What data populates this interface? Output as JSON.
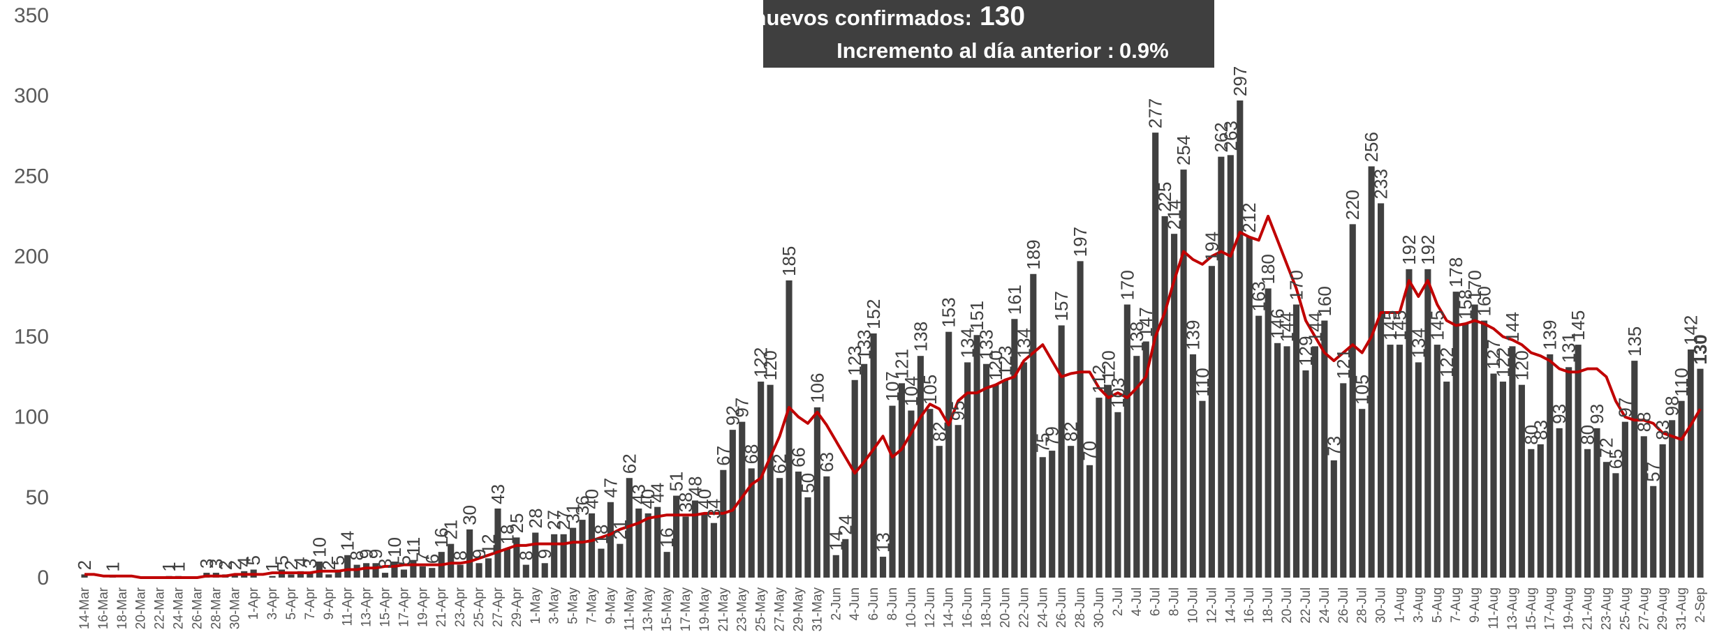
{
  "chart_data": {
    "type": "bar",
    "annotations": {
      "label1": "Casos nuevos confirmados:",
      "value1": "130",
      "label2": "Incremento al día anterior :",
      "value2": "0.9%"
    },
    "categories": [
      "14-Mar",
      null,
      "16-Mar",
      null,
      "18-Mar",
      null,
      "20-Mar",
      null,
      "22-Mar",
      null,
      "24-Mar",
      null,
      "26-Mar",
      null,
      "28-Mar",
      null,
      "30-Mar",
      null,
      "1-Apr",
      null,
      "3-Apr",
      null,
      "5-Apr",
      null,
      "7-Apr",
      null,
      "9-Apr",
      null,
      "11-Apr",
      null,
      "13-Apr",
      null,
      "15-Apr",
      null,
      "17-Apr",
      null,
      "19-Apr",
      null,
      "21-Apr",
      null,
      "23-Apr",
      null,
      "25-Apr",
      null,
      "27-Apr",
      null,
      "29-Apr",
      null,
      "1-May",
      null,
      "3-May",
      null,
      "5-May",
      null,
      "7-May",
      null,
      "9-May",
      null,
      "11-May",
      null,
      "13-May",
      null,
      "15-May",
      null,
      "17-May",
      null,
      "19-May",
      null,
      "21-May",
      null,
      "23-May",
      null,
      "25-May",
      null,
      "27-May",
      null,
      "29-May",
      null,
      "31-May",
      null,
      "2-Jun",
      null,
      "4-Jun",
      null,
      "6-Jun",
      null,
      "8-Jun",
      null,
      "10-Jun",
      null,
      "12-Jun",
      null,
      "14-Jun",
      null,
      "16-Jun",
      null,
      "18-Jun",
      null,
      "20-Jun",
      null,
      "22-Jun",
      null,
      "24-Jun",
      null,
      "26-Jun",
      null,
      "28-Jun",
      null,
      "30-Jun",
      null,
      "2-Jul",
      null,
      "4-Jul",
      null,
      "6-Jul",
      null,
      "8-Jul",
      null,
      "10-Jul",
      null,
      "12-Jul",
      null,
      "14-Jul",
      null,
      "16-Jul",
      null,
      "18-Jul",
      null,
      "20-Jul",
      null,
      "22-Jul",
      null,
      "24-Jul",
      null,
      "26-Jul",
      null,
      "28-Jul",
      null,
      "30-Jul",
      null,
      "1-Aug",
      null,
      "3-Aug",
      null,
      "5-Aug",
      null,
      "7-Aug",
      null,
      "9-Aug",
      null,
      "11-Aug",
      null,
      "13-Aug",
      null,
      "15-Aug",
      null,
      "17-Aug",
      null,
      "19-Aug",
      null,
      "21-Aug",
      null,
      "23-Aug",
      null,
      "25-Aug",
      null,
      "27-Aug",
      null,
      "29-Aug",
      null,
      "31-Aug",
      null,
      "2-Sep"
    ],
    "series": [
      {
        "type": "bar",
        "color": "#404040",
        "values": [
          2,
          0,
          0,
          1,
          0,
          0,
          0,
          0,
          0,
          1,
          1,
          0,
          0,
          3,
          3,
          2,
          2,
          4,
          5,
          0,
          1,
          5,
          2,
          4,
          3,
          10,
          2,
          5,
          14,
          8,
          9,
          9,
          3,
          10,
          5,
          11,
          7,
          6,
          16,
          21,
          8,
          30,
          9,
          12,
          43,
          18,
          25,
          8,
          28,
          9,
          27,
          27,
          31,
          36,
          40,
          18,
          47,
          21,
          62,
          43,
          40,
          44,
          16,
          51,
          38,
          48,
          40,
          34,
          67,
          92,
          97,
          68,
          122,
          120,
          62,
          185,
          66,
          50,
          106,
          63,
          14,
          24,
          123,
          133,
          152,
          13,
          107,
          121,
          104,
          138,
          105,
          82,
          153,
          95,
          134,
          151,
          133,
          120,
          123,
          161,
          134,
          189,
          75,
          79,
          157,
          82,
          197,
          70,
          112,
          120,
          103,
          170,
          138,
          147,
          277,
          225,
          214,
          254,
          139,
          110,
          194,
          262,
          263,
          297,
          212,
          163,
          180,
          146,
          144,
          170,
          129,
          144,
          160,
          73,
          121,
          220,
          105,
          256,
          233,
          145,
          145,
          192,
          134,
          192,
          145,
          122,
          178,
          158,
          170,
          160,
          127,
          122,
          144,
          120,
          80,
          83,
          139,
          93,
          131,
          145,
          80,
          93,
          72,
          65,
          97,
          135,
          88,
          57,
          83,
          98,
          110,
          142,
          130
        ]
      },
      {
        "type": "line",
        "color": "#c00000",
        "values": [
          2,
          2,
          1,
          1,
          1,
          1,
          0,
          0,
          0,
          0,
          0,
          0,
          0,
          1,
          1,
          1,
          2,
          2,
          2,
          2,
          3,
          3,
          3,
          3,
          3,
          4,
          4,
          4,
          5,
          5,
          6,
          6,
          7,
          7,
          8,
          8,
          8,
          8,
          8,
          9,
          9,
          10,
          12,
          14,
          16,
          18,
          20,
          20,
          21,
          21,
          21,
          21,
          22,
          22,
          23,
          25,
          27,
          30,
          32,
          34,
          37,
          38,
          39,
          39,
          39,
          39,
          40,
          40,
          40,
          42,
          50,
          58,
          62,
          75,
          88,
          106,
          100,
          96,
          103,
          95,
          85,
          75,
          65,
          72,
          80,
          88,
          75,
          80,
          90,
          100,
          108,
          105,
          95,
          110,
          115,
          115,
          118,
          120,
          123,
          125,
          135,
          140,
          145,
          135,
          125,
          127,
          128,
          128,
          118,
          112,
          115,
          112,
          118,
          125,
          150,
          165,
          185,
          203,
          198,
          195,
          200,
          203,
          200,
          215,
          212,
          210,
          225,
          210,
          195,
          180,
          160,
          150,
          140,
          135,
          140,
          145,
          140,
          150,
          165,
          165,
          165,
          185,
          175,
          185,
          170,
          160,
          157,
          158,
          160,
          158,
          155,
          150,
          148,
          145,
          140,
          138,
          135,
          130,
          128,
          128,
          130,
          130,
          125,
          110,
          100,
          98,
          98,
          96,
          90,
          88,
          86,
          95,
          105
        ]
      }
    ],
    "ylim": [
      0,
      350
    ],
    "yticks": [
      0,
      50,
      100,
      150,
      200,
      250,
      300,
      350
    ],
    "grid": false
  }
}
